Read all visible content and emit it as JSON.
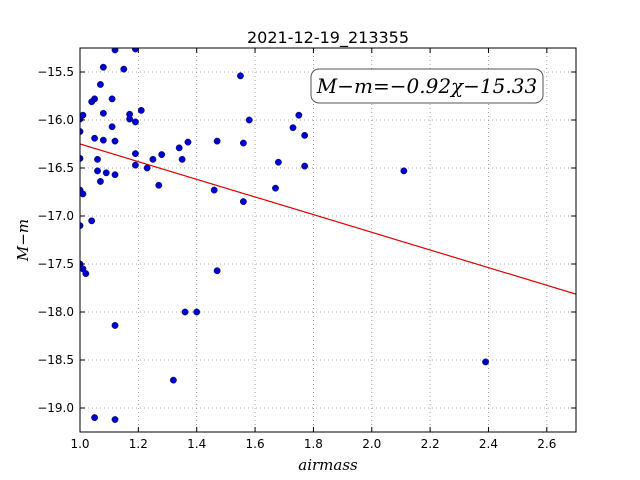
{
  "chart_data": {
    "type": "scatter",
    "title": "2021-12-19_213355",
    "xlabel": "airmass",
    "ylabel": "M−m",
    "xlim": [
      1.0,
      2.7
    ],
    "ylim": [
      -15.25,
      -19.25
    ],
    "y_inverted": true,
    "xticks": [
      1.0,
      1.2,
      1.4,
      1.6,
      1.8,
      2.0,
      2.2,
      2.4,
      2.6
    ],
    "xtick_labels": [
      "1.0",
      "1.2",
      "1.4",
      "1.6",
      "1.8",
      "2.0",
      "2.2",
      "2.4",
      "2.6"
    ],
    "yticks": [
      -15.5,
      -16.0,
      -16.5,
      -17.0,
      -17.5,
      -18.0,
      -18.5,
      -19.0
    ],
    "ytick_labels": [
      "−15.5",
      "−16.0",
      "−16.5",
      "−17.0",
      "−17.5",
      "−18.0",
      "−18.5",
      "−19.0"
    ],
    "grid": true,
    "point_color": "#0000cc",
    "fit_line_color": "#dd0000",
    "fit": {
      "slope": -0.92,
      "intercept": -15.33
    },
    "annotation": "M−m=−0.92χ−15.33",
    "points": [
      [
        1.0,
        -16.12
      ],
      [
        1.0,
        -16.4
      ],
      [
        1.0,
        -16.73
      ],
      [
        1.0,
        -17.1
      ],
      [
        1.0,
        -17.5
      ],
      [
        1.01,
        -17.55
      ],
      [
        1.01,
        -16.77
      ],
      [
        1.02,
        -17.6
      ],
      [
        1.01,
        -15.95
      ],
      [
        1.0,
        -15.99
      ],
      [
        1.04,
        -17.05
      ],
      [
        1.04,
        -15.81
      ],
      [
        1.05,
        -15.78
      ],
      [
        1.05,
        -16.19
      ],
      [
        1.06,
        -16.53
      ],
      [
        1.06,
        -16.41
      ],
      [
        1.07,
        -16.64
      ],
      [
        1.07,
        -15.63
      ],
      [
        1.08,
        -15.45
      ],
      [
        1.08,
        -15.93
      ],
      [
        1.08,
        -16.21
      ],
      [
        1.09,
        -16.55
      ],
      [
        1.11,
        -15.78
      ],
      [
        1.11,
        -16.07
      ],
      [
        1.12,
        -16.22
      ],
      [
        1.12,
        -16.57
      ],
      [
        1.12,
        -15.27
      ],
      [
        1.12,
        -18.14
      ],
      [
        1.12,
        -19.12
      ],
      [
        1.05,
        -19.1
      ],
      [
        1.15,
        -15.47
      ],
      [
        1.17,
        -15.94
      ],
      [
        1.17,
        -15.99
      ],
      [
        1.19,
        -16.02
      ],
      [
        1.19,
        -16.35
      ],
      [
        1.19,
        -16.47
      ],
      [
        1.19,
        -15.26
      ],
      [
        1.21,
        -15.9
      ],
      [
        1.23,
        -16.5
      ],
      [
        1.25,
        -16.41
      ],
      [
        1.27,
        -16.68
      ],
      [
        1.28,
        -16.36
      ],
      [
        1.32,
        -18.71
      ],
      [
        1.34,
        -16.29
      ],
      [
        1.35,
        -16.41
      ],
      [
        1.37,
        -16.23
      ],
      [
        1.36,
        -18.0
      ],
      [
        1.4,
        -18.0
      ],
      [
        1.46,
        -16.73
      ],
      [
        1.47,
        -16.22
      ],
      [
        1.47,
        -17.57
      ],
      [
        1.55,
        -15.54
      ],
      [
        1.56,
        -16.24
      ],
      [
        1.56,
        -16.85
      ],
      [
        1.58,
        -16.0
      ],
      [
        1.67,
        -16.71
      ],
      [
        1.68,
        -16.44
      ],
      [
        1.73,
        -16.08
      ],
      [
        1.75,
        -15.95
      ],
      [
        1.77,
        -16.16
      ],
      [
        1.77,
        -16.48
      ],
      [
        2.11,
        -16.53
      ],
      [
        2.39,
        -18.52
      ]
    ]
  }
}
